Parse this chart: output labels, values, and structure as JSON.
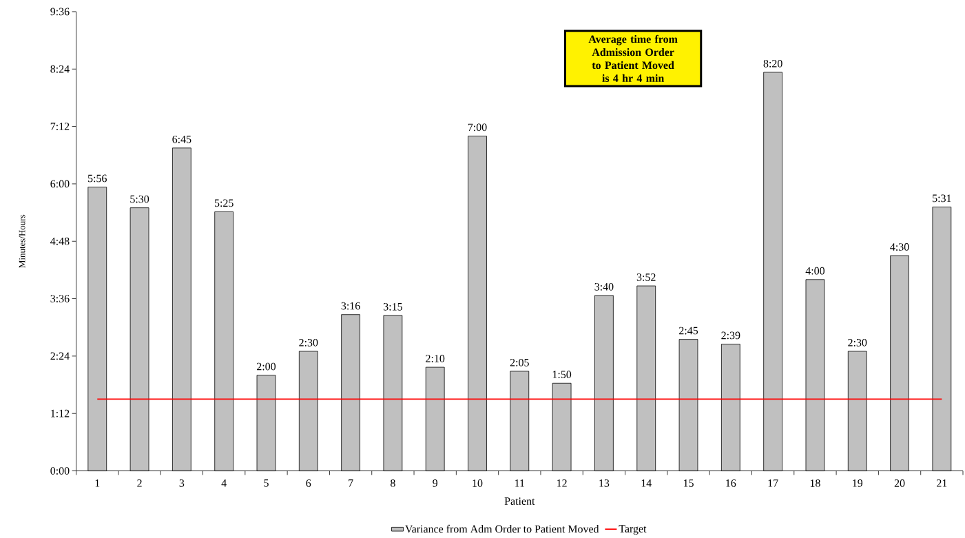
{
  "chart_data": {
    "type": "bar",
    "xlabel": "Patient",
    "ylabel": "Minutes/Hours",
    "categories": [
      "1",
      "2",
      "3",
      "4",
      "5",
      "6",
      "7",
      "8",
      "9",
      "10",
      "11",
      "12",
      "13",
      "14",
      "15",
      "16",
      "17",
      "18",
      "19",
      "20",
      "21"
    ],
    "series": [
      {
        "name": "Variance from Adm Order to Patient Moved",
        "color": "#c0c0c0",
        "values": [
          5.933,
          5.5,
          6.75,
          5.417,
          2.0,
          2.5,
          3.267,
          3.25,
          2.167,
          7.0,
          2.083,
          1.833,
          3.667,
          3.867,
          2.75,
          2.65,
          8.333,
          4.0,
          2.5,
          4.5,
          5.517
        ],
        "value_labels": [
          "5:56",
          "5:30",
          "6:45",
          "5:25",
          "2:00",
          "2:30",
          "3:16",
          "3:15",
          "2:10",
          "7:00",
          "2:05",
          "1:50",
          "3:40",
          "3:52",
          "2:45",
          "2:39",
          "8:20",
          "4:00",
          "2:30",
          "4:30",
          "5:31"
        ]
      },
      {
        "name": "Target",
        "type": "line",
        "color": "#ff0000",
        "values": [
          1.5,
          1.5,
          1.5,
          1.5,
          1.5,
          1.5,
          1.5,
          1.5,
          1.5,
          1.5,
          1.5,
          1.5,
          1.5,
          1.5,
          1.5,
          1.5,
          1.5,
          1.5,
          1.5,
          1.5,
          1.5
        ]
      }
    ],
    "ylim": [
      0,
      9.6
    ],
    "yticks": [
      {
        "value": 0,
        "label": "0:00"
      },
      {
        "value": 1.2,
        "label": "1:12"
      },
      {
        "value": 2.4,
        "label": "2:24"
      },
      {
        "value": 3.6,
        "label": "3:36"
      },
      {
        "value": 4.8,
        "label": "4:48"
      },
      {
        "value": 6.0,
        "label": "6:00"
      },
      {
        "value": 7.2,
        "label": "7:12"
      },
      {
        "value": 8.4,
        "label": "8:24"
      },
      {
        "value": 9.6,
        "label": "9:36"
      }
    ],
    "legend": "bottom",
    "annotations": [
      "Average time from Admission Order to Patient Moved is 4 hr 4 min"
    ]
  }
}
